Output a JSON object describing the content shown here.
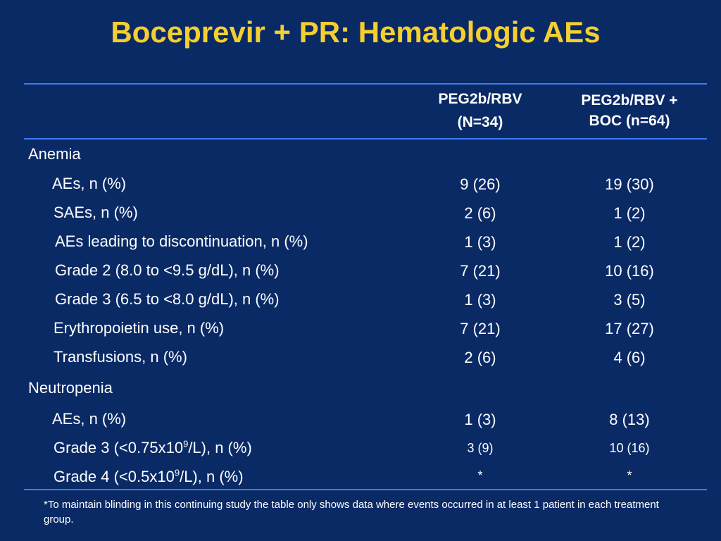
{
  "title": "Boceprevir + PR:  Hematologic AEs",
  "columns": [
    {
      "line1": "PEG2b/RBV",
      "line2": "(N=34)"
    },
    {
      "line1": "PEG2b/RBV +",
      "line2": "BOC (n=64)"
    }
  ],
  "sections": [
    {
      "label": "Anemia",
      "rows": [
        {
          "label": "AEs, n (%)",
          "v1": "9 (26)",
          "v2": "19 (30)"
        },
        {
          "label": "SAEs, n (%)",
          "v1": "2 (6)",
          "v2": "1 (2)"
        },
        {
          "label": "AEs leading to discontinuation, n (%)",
          "v1": "1 (3)",
          "v2": "1 (2)"
        },
        {
          "label": "Grade 2 (8.0 to <9.5 g/dL), n (%)",
          "v1": "7 (21)",
          "v2": "10 (16)"
        },
        {
          "label": "Grade 3 (6.5 to <8.0 g/dL), n (%)",
          "v1": "1 (3)",
          "v2": "3 (5)"
        },
        {
          "label": "Erythropoietin use, n (%)",
          "v1": "7 (21)",
          "v2": "17 (27)"
        },
        {
          "label": "Transfusions, n (%)",
          "v1": "2 (6)",
          "v2": "4 (6)"
        }
      ]
    },
    {
      "label": "Neutropenia",
      "rows": [
        {
          "label": "AEs, n (%)",
          "v1": "1 (3)",
          "v2": "8 (13)"
        },
        {
          "label_pre": "Grade 3 (<0.75x10",
          "label_sup": "9",
          "label_post": "/L), n (%)",
          "v1": "3 (9)",
          "v2": "10 (16)"
        },
        {
          "label_pre": "Grade 4 (<0.5x10",
          "label_sup": "9",
          "label_post": "/L), n (%)",
          "v1": "*",
          "v2": "*"
        }
      ]
    }
  ],
  "footnote": "*To maintain blinding in this continuing study the table only shows data where events occurred in at least 1 patient in each treatment group."
}
